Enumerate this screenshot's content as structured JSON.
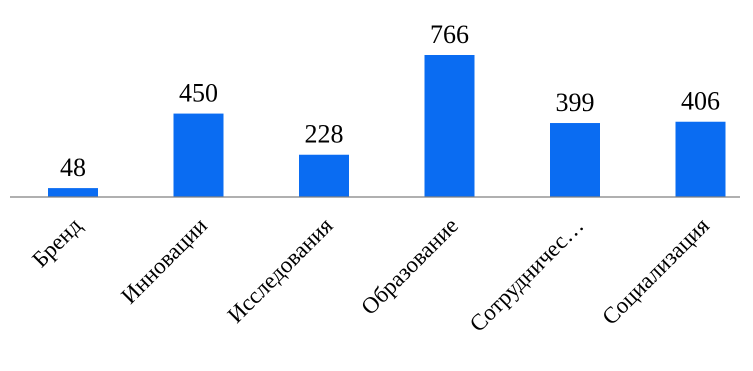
{
  "chart_data": {
    "type": "bar",
    "categories": [
      "Бренд",
      "Инновации",
      "Исследования",
      "Образование",
      "Сотрудничес…",
      "Социализация"
    ],
    "values": [
      48,
      450,
      228,
      766,
      399,
      406
    ],
    "title": "",
    "xlabel": "",
    "ylabel": "",
    "ylim": [
      0,
      766
    ],
    "grid": false,
    "legend": "none",
    "data_labels": true,
    "bar_color": "#0A6CF2",
    "axis_color": "#808080"
  }
}
